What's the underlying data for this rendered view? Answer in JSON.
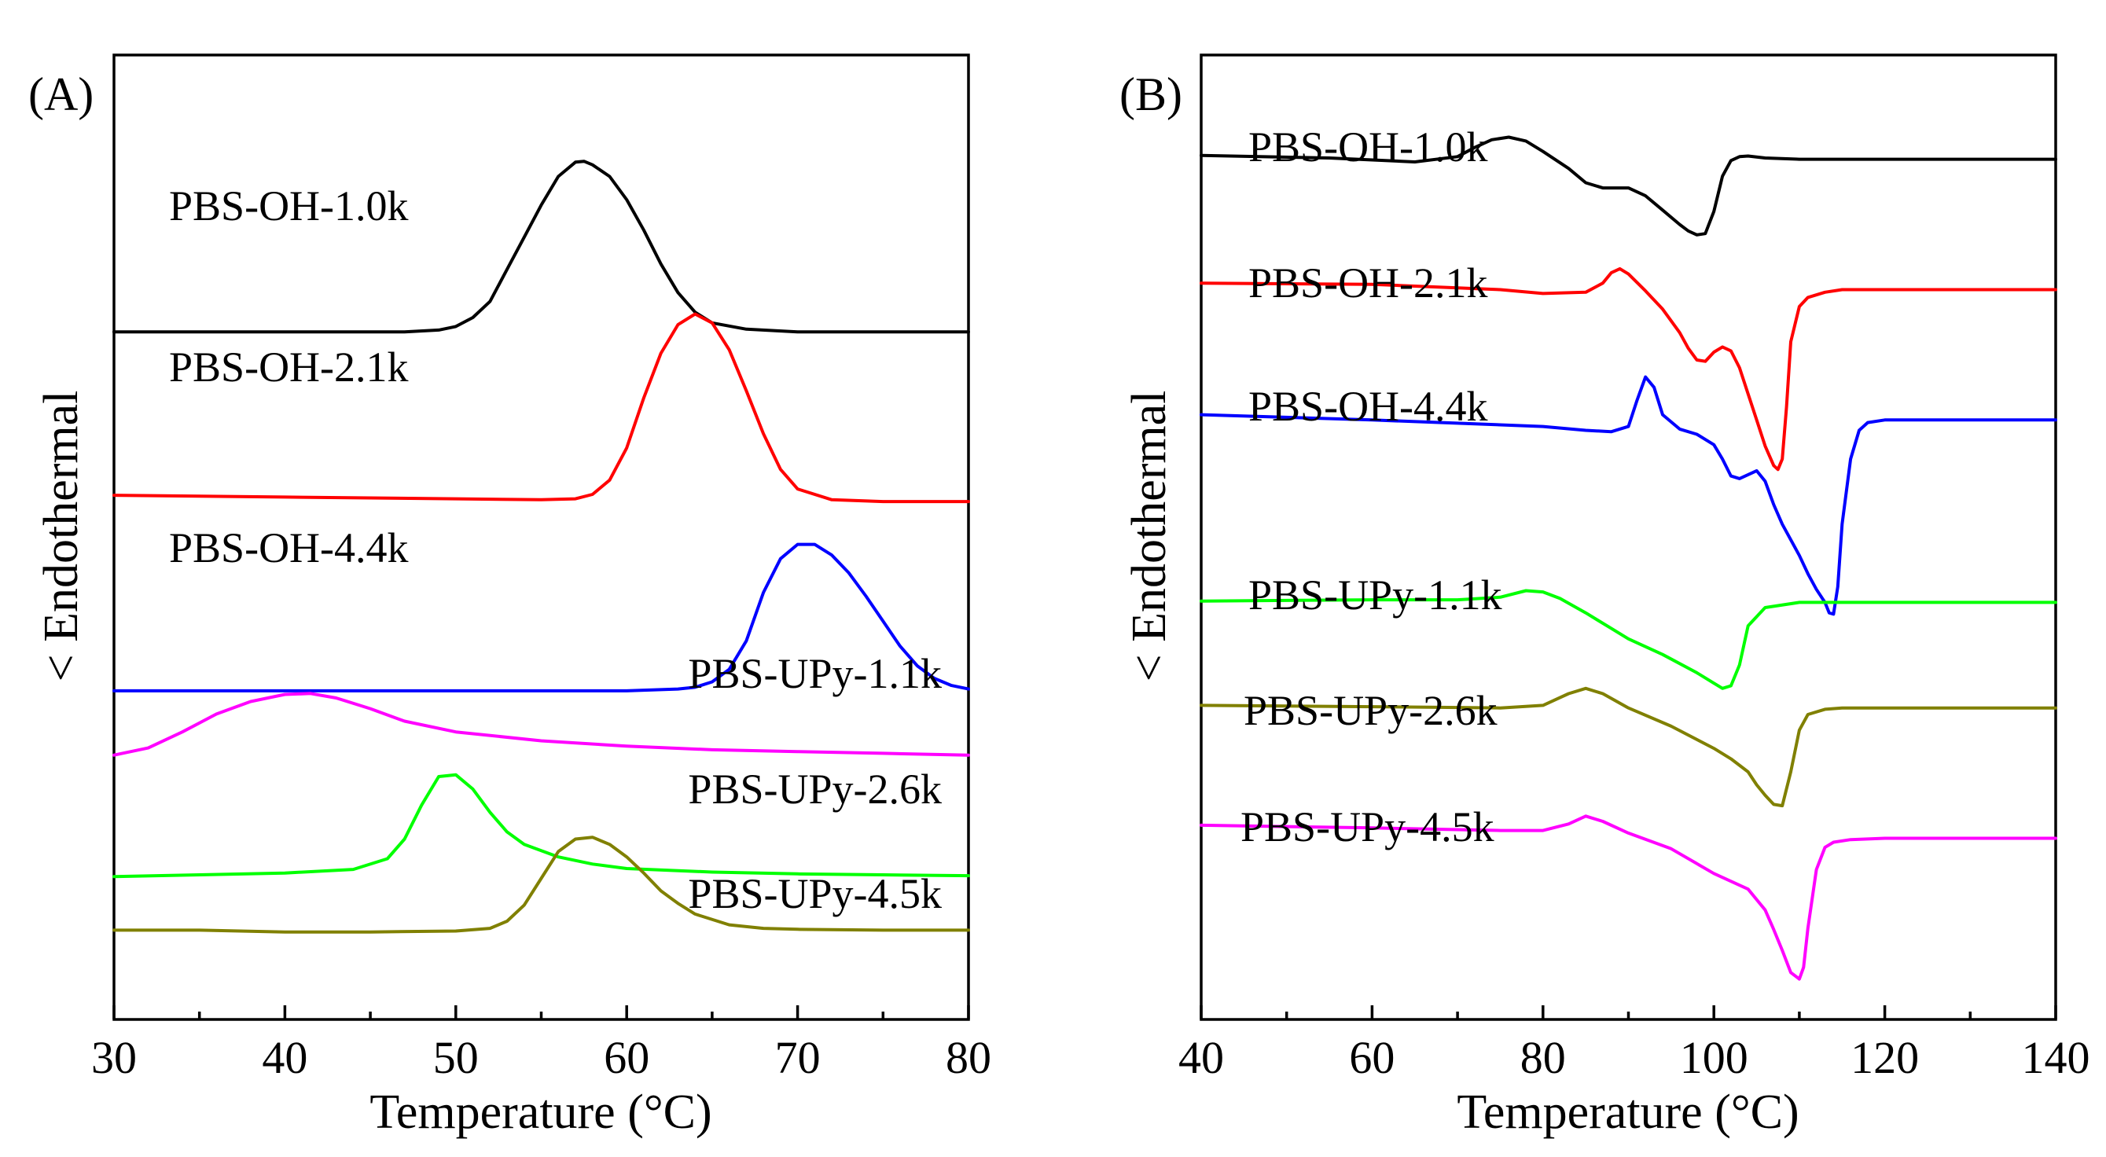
{
  "chart_data": [
    {
      "panel_label": "(A)",
      "type": "line",
      "xlabel": "Temperature (°C)",
      "ylabel": "< Endothermal",
      "xlim": [
        30,
        80
      ],
      "xticks": [
        30,
        40,
        50,
        60,
        70,
        80
      ],
      "xtick_labels": [
        "30",
        "40",
        "50",
        "60",
        "70",
        "80"
      ],
      "yticks_shown": false,
      "grid": false,
      "series": [
        {
          "name": "PBS-OH-1.0k",
          "color": "#000000",
          "baseline": 7.1,
          "x": [
            30,
            35,
            40,
            45,
            47,
            49,
            50,
            51,
            52,
            53,
            54,
            55,
            56,
            57,
            57.5,
            58,
            59,
            60,
            61,
            62,
            63,
            64,
            65,
            67,
            70,
            75,
            80
          ],
          "y": [
            7.1,
            7.1,
            7.1,
            7.1,
            7.1,
            7.12,
            7.16,
            7.26,
            7.44,
            7.8,
            8.16,
            8.52,
            8.84,
            9.0,
            9.01,
            8.97,
            8.84,
            8.58,
            8.24,
            7.86,
            7.54,
            7.32,
            7.2,
            7.13,
            7.1,
            7.1,
            7.1
          ]
        },
        {
          "name": "PBS-OH-2.1k",
          "color": "#ff0000",
          "baseline": 5.2,
          "x": [
            30,
            40,
            50,
            55,
            57,
            58,
            59,
            60,
            61,
            62,
            63,
            64,
            65,
            66,
            67,
            68,
            69,
            70,
            72,
            75,
            80
          ],
          "y": [
            5.27,
            5.25,
            5.23,
            5.22,
            5.23,
            5.28,
            5.44,
            5.8,
            6.36,
            6.86,
            7.18,
            7.3,
            7.2,
            6.9,
            6.44,
            5.96,
            5.56,
            5.34,
            5.22,
            5.2,
            5.2
          ]
        },
        {
          "name": "PBS-OH-4.4k",
          "color": "#0000ff",
          "baseline": 3.08,
          "x": [
            30,
            40,
            50,
            60,
            63,
            64,
            65,
            66,
            67,
            68,
            69,
            70,
            71,
            72,
            73,
            74,
            75,
            76,
            77,
            78,
            79,
            80
          ],
          "y": [
            3.08,
            3.08,
            3.08,
            3.08,
            3.1,
            3.12,
            3.18,
            3.32,
            3.64,
            4.18,
            4.56,
            4.72,
            4.72,
            4.6,
            4.4,
            4.14,
            3.86,
            3.58,
            3.36,
            3.22,
            3.14,
            3.1
          ]
        },
        {
          "name": "PBS-UPy-1.1k",
          "color": "#ff00ff",
          "baseline": 2.36,
          "x": [
            30,
            32,
            34,
            36,
            38,
            40,
            41.5,
            43,
            45,
            47,
            50,
            55,
            60,
            65,
            70,
            75,
            80
          ],
          "y": [
            2.36,
            2.44,
            2.62,
            2.82,
            2.96,
            3.04,
            3.05,
            3.0,
            2.88,
            2.74,
            2.62,
            2.52,
            2.46,
            2.42,
            2.4,
            2.38,
            2.36
          ]
        },
        {
          "name": "PBS-UPy-2.6k",
          "color": "#00ff00",
          "baseline": 1.0,
          "x": [
            30,
            35,
            40,
            44,
            46,
            47,
            48,
            49,
            50,
            51,
            52,
            53,
            54,
            56,
            58,
            60,
            65,
            70,
            75,
            80
          ],
          "y": [
            1.0,
            1.02,
            1.04,
            1.08,
            1.2,
            1.42,
            1.8,
            2.12,
            2.14,
            1.98,
            1.72,
            1.5,
            1.36,
            1.22,
            1.14,
            1.09,
            1.05,
            1.03,
            1.02,
            1.01
          ]
        },
        {
          "name": "PBS-UPy-4.5k",
          "color": "#808000",
          "baseline": 0.4,
          "x": [
            30,
            35,
            40,
            45,
            50,
            52,
            53,
            54,
            55,
            56,
            57,
            58,
            59,
            60,
            61,
            62,
            63,
            64,
            66,
            68,
            70,
            75,
            80
          ],
          "y": [
            0.4,
            0.4,
            0.38,
            0.38,
            0.39,
            0.42,
            0.5,
            0.68,
            0.98,
            1.28,
            1.42,
            1.44,
            1.36,
            1.22,
            1.04,
            0.84,
            0.7,
            0.58,
            0.46,
            0.42,
            0.41,
            0.4,
            0.4
          ]
        }
      ],
      "label_alignment": [
        "left",
        "left",
        "left",
        "right",
        "right",
        "right"
      ]
    },
    {
      "panel_label": "(B)",
      "type": "line",
      "xlabel": "Temperature (°C)",
      "ylabel": "< Endothermal",
      "xlim": [
        40,
        140
      ],
      "xticks": [
        40,
        60,
        80,
        100,
        120,
        140
      ],
      "xtick_labels": [
        "40",
        "60",
        "80",
        "100",
        "120",
        "140"
      ],
      "yticks_shown": false,
      "grid": false,
      "series": [
        {
          "name": "PBS-OH-1.0k",
          "color": "#000000",
          "x": [
            40,
            55,
            65,
            70,
            72,
            74,
            76,
            78,
            80,
            83,
            85,
            87,
            90,
            92,
            94,
            96,
            97,
            98,
            99,
            100,
            101,
            102,
            103,
            104,
            106,
            110,
            120,
            140
          ],
          "y": [
            10.06,
            10.02,
            9.96,
            10.04,
            10.18,
            10.3,
            10.34,
            10.28,
            10.12,
            9.86,
            9.64,
            9.56,
            9.56,
            9.44,
            9.22,
            9.0,
            8.9,
            8.84,
            8.86,
            9.2,
            9.74,
            9.98,
            10.04,
            10.05,
            10.02,
            10.0,
            10.0,
            10.0
          ]
        },
        {
          "name": "PBS-OH-2.1k",
          "color": "#ff0000",
          "x": [
            40,
            60,
            75,
            80,
            85,
            87,
            88,
            89,
            90,
            92,
            94,
            96,
            97,
            98,
            99,
            100,
            101,
            102,
            103,
            104,
            105,
            106,
            107,
            107.5,
            108,
            108.5,
            109,
            110,
            111,
            113,
            115,
            120,
            140
          ],
          "y": [
            8.1,
            8.08,
            8.0,
            7.94,
            7.96,
            8.1,
            8.26,
            8.32,
            8.24,
            7.98,
            7.7,
            7.34,
            7.1,
            6.92,
            6.9,
            7.04,
            7.12,
            7.06,
            6.8,
            6.4,
            6.0,
            5.6,
            5.3,
            5.24,
            5.4,
            6.2,
            7.2,
            7.74,
            7.88,
            7.96,
            8.0,
            8.0,
            8.0
          ]
        },
        {
          "name": "PBS-OH-4.4k",
          "color": "#0000ff",
          "x": [
            40,
            60,
            80,
            85,
            88,
            90,
            91,
            92,
            93,
            94,
            96,
            98,
            100,
            101,
            102,
            103,
            104,
            105,
            106,
            107,
            108,
            110,
            111,
            112,
            113,
            113.5,
            114,
            114.5,
            115,
            116,
            117,
            118,
            120,
            125,
            140
          ],
          "y": [
            6.08,
            6.0,
            5.9,
            5.84,
            5.82,
            5.9,
            6.3,
            6.66,
            6.5,
            6.08,
            5.86,
            5.78,
            5.62,
            5.4,
            5.14,
            5.1,
            5.16,
            5.22,
            5.06,
            4.7,
            4.4,
            3.92,
            3.64,
            3.4,
            3.2,
            3.04,
            3.02,
            3.44,
            4.4,
            5.4,
            5.84,
            5.96,
            6.0,
            6.0,
            6.0
          ]
        },
        {
          "name": "PBS-UPy-1.1k",
          "color": "#00ff00",
          "x": [
            40,
            60,
            70,
            75,
            78,
            80,
            82,
            85,
            88,
            90,
            94,
            98,
            100,
            101,
            102,
            103,
            104,
            106,
            110,
            120,
            140
          ],
          "y": [
            3.22,
            3.24,
            3.24,
            3.28,
            3.38,
            3.36,
            3.26,
            3.04,
            2.8,
            2.64,
            2.4,
            2.12,
            1.96,
            1.88,
            1.92,
            2.24,
            2.84,
            3.12,
            3.2,
            3.2,
            3.2
          ]
        },
        {
          "name": "PBS-UPy-2.6k",
          "color": "#808000",
          "x": [
            40,
            60,
            75,
            80,
            83,
            85,
            87,
            90,
            95,
            100,
            102,
            104,
            105,
            106,
            107,
            108,
            109,
            110,
            111,
            113,
            115,
            120,
            140
          ],
          "y": [
            1.62,
            1.6,
            1.58,
            1.62,
            1.8,
            1.88,
            1.8,
            1.58,
            1.3,
            0.96,
            0.8,
            0.6,
            0.4,
            0.24,
            0.1,
            0.08,
            0.6,
            1.24,
            1.48,
            1.56,
            1.58,
            1.58,
            1.58
          ]
        },
        {
          "name": "PBS-UPy-4.5k",
          "color": "#ff00ff",
          "x": [
            40,
            60,
            75,
            80,
            83,
            85,
            87,
            90,
            95,
            100,
            104,
            106,
            107,
            108,
            109,
            110,
            110.5,
            111,
            112,
            113,
            114,
            116,
            120,
            140
          ],
          "y": [
            -0.22,
            -0.26,
            -0.3,
            -0.3,
            -0.2,
            -0.08,
            -0.16,
            -0.34,
            -0.58,
            -0.96,
            -1.2,
            -1.52,
            -1.82,
            -2.14,
            -2.48,
            -2.58,
            -2.4,
            -1.8,
            -0.9,
            -0.56,
            -0.48,
            -0.44,
            -0.42,
            -0.42
          ]
        }
      ]
    }
  ]
}
